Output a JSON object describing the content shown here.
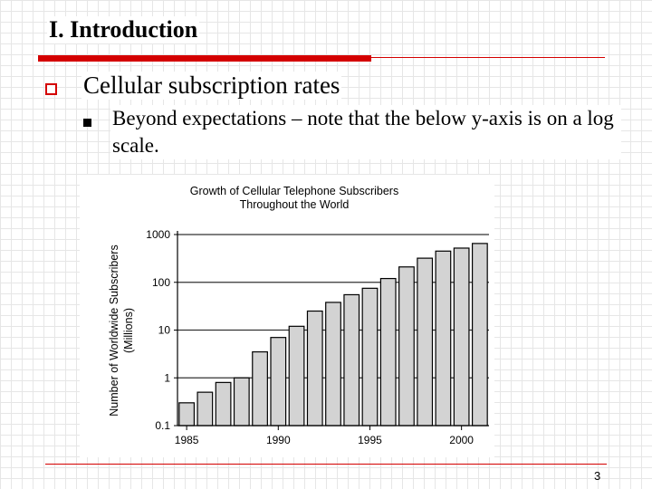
{
  "slide": {
    "title": "I. Introduction",
    "bullet_level1": "Cellular subscription rates",
    "bullet_level2": "Beyond expectations – note that the below y-axis is on a log scale.",
    "page_number": "3",
    "accent_color": "#d40000"
  },
  "chart_data": {
    "type": "bar",
    "title": [
      "Growth of Cellular Telephone Subscribers",
      "Throughout the World"
    ],
    "ylabel": [
      "Number of Worldwide Subscribers",
      "(Millions)"
    ],
    "xlabel": "",
    "y_scale": "log",
    "ylim": [
      0.1,
      1000
    ],
    "y_ticks": [
      0.1,
      1,
      10,
      100,
      1000
    ],
    "y_tick_labels": [
      "0.1",
      "1",
      "10",
      "100",
      "1000"
    ],
    "x_ticks": [
      1985,
      1990,
      1995,
      2000
    ],
    "x_tick_labels": [
      "1985",
      "1990",
      "1995",
      "2000"
    ],
    "grid": "horizontal",
    "bar_color": "#d3d3d3",
    "categories": [
      1985,
      1986,
      1987,
      1988,
      1989,
      1990,
      1991,
      1992,
      1993,
      1994,
      1995,
      1996,
      1997,
      1998,
      1999,
      2000,
      2001
    ],
    "values": [
      0.3,
      0.5,
      0.8,
      1.0,
      3.5,
      7,
      12,
      25,
      38,
      55,
      75,
      120,
      210,
      320,
      450,
      520,
      650
    ]
  }
}
